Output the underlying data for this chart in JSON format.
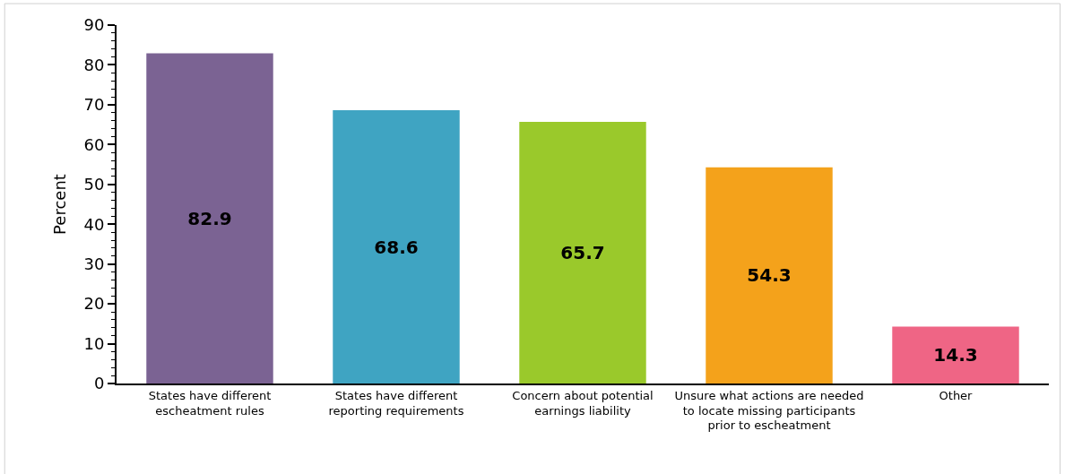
{
  "chart_data": {
    "type": "bar",
    "ylabel": "Percent",
    "categories": [
      "States have different escheatment rules",
      "States have different reporting requirements",
      "Concern about potential earnings liability",
      "Unsure what actions are needed to locate missing participants prior to escheatment",
      "Other"
    ],
    "values": [
      82.9,
      68.6,
      65.7,
      54.3,
      14.3
    ],
    "colors": [
      "#7b6393",
      "#3fa4c2",
      "#9ac92b",
      "#f4a21b",
      "#ef6585"
    ],
    "ylim": [
      0,
      90
    ],
    "yticks": [
      0,
      10,
      20,
      30,
      40,
      50,
      60,
      70,
      80,
      90
    ],
    "data_labels": true,
    "legend": false
  }
}
